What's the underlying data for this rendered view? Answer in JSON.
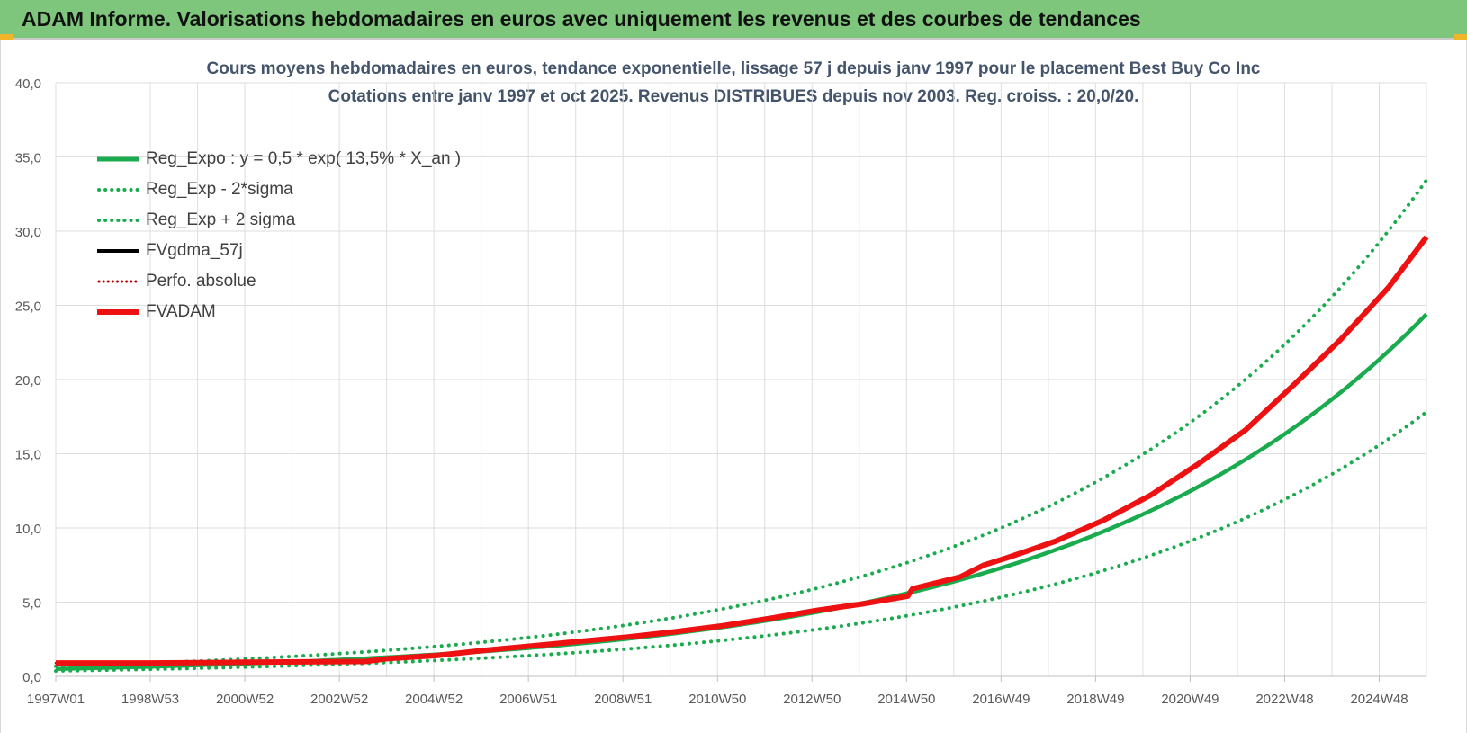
{
  "header": {
    "title": "ADAM Informe. Valorisations hebdomadaires en euros avec uniquement les revenus et des courbes de tendances"
  },
  "chart_data": {
    "type": "line",
    "title_line1": "Cours moyens hebdomadaires en euros, tendance exponentielle, lissage 57 j depuis janv 1997  pour le placement Best Buy Co Inc",
    "title_line2": "Cotations entre janv 1997 et oct 2025. Revenus DISTRIBUES depuis nov 2003. Reg. croiss. : 20,0/20.",
    "x_tick_labels": [
      "1997W01",
      "1998W53",
      "2000W52",
      "2002W52",
      "2004W52",
      "2006W51",
      "2008W51",
      "2010W50",
      "2012W50",
      "2014W50",
      "2016W49",
      "2018W49",
      "2020W49",
      "2022W48",
      "2024W48"
    ],
    "x_range_years": [
      1997.0,
      2025.8
    ],
    "ylim": [
      0,
      40
    ],
    "y_ticks": [
      0,
      5,
      10,
      15,
      20,
      25,
      30,
      35,
      40
    ],
    "y_tick_labels": [
      "0,0",
      "5,0",
      "10,0",
      "15,0",
      "20,0",
      "25,0",
      "30,0",
      "35,0",
      "40,0"
    ],
    "grid": true,
    "legend_position": "top-left",
    "regression": {
      "a": 0.5,
      "rate": 0.135,
      "x0": 1997.0,
      "lower_factor": 0.73,
      "upper_factor": 1.37
    },
    "series": [
      {
        "name": "Reg_Expo : y = 0,5 * exp( 13,5% *  X_an )",
        "color": "#1aab4f",
        "style": "solid",
        "kind": "reg"
      },
      {
        "name": "Reg_Exp - 2*sigma",
        "color": "#1aab4f",
        "style": "dotted",
        "kind": "reg_low"
      },
      {
        "name": "Reg_Exp + 2 sigma",
        "color": "#1aab4f",
        "style": "dotted",
        "kind": "reg_high"
      },
      {
        "name": "FVgdma_57j",
        "color": "#000000",
        "style": "solid",
        "kind": "data",
        "x": [
          1997.0,
          1999.0,
          2001.0,
          2003.5,
          2004.0,
          2005.0,
          2006.0,
          2007.0,
          2008.0,
          2009.0,
          2010.0,
          2011.0,
          2012.0,
          2013.0,
          2014.0,
          2014.9,
          2015.0,
          2016.0,
          2016.5,
          2017.0,
          2018.0,
          2019.0,
          2020.0,
          2021.0,
          2022.0,
          2023.0,
          2024.0,
          2025.0,
          2025.8
        ],
        "values": [
          0.9,
          0.9,
          0.95,
          1.0,
          1.2,
          1.4,
          1.75,
          2.05,
          2.35,
          2.65,
          3.0,
          3.4,
          3.9,
          4.45,
          4.9,
          5.4,
          5.9,
          6.7,
          7.5,
          8.0,
          9.1,
          10.5,
          12.2,
          14.3,
          16.6,
          19.6,
          22.7,
          26.2,
          29.6
        ]
      },
      {
        "name": "Perfo. absolue",
        "color": "#c00000",
        "style": "dotted",
        "kind": "data",
        "x": [
          1997.0,
          1999.0,
          2001.0,
          2003.5,
          2004.0,
          2005.0,
          2006.0,
          2007.0,
          2008.0,
          2009.0,
          2010.0,
          2011.0,
          2012.0,
          2013.0,
          2014.0,
          2014.9,
          2015.0,
          2016.0,
          2016.5,
          2017.0,
          2018.0,
          2019.0,
          2020.0,
          2021.0,
          2022.0,
          2023.0,
          2024.0,
          2025.0,
          2025.8
        ],
        "values": [
          0.9,
          0.9,
          0.95,
          1.0,
          1.2,
          1.4,
          1.75,
          2.05,
          2.35,
          2.65,
          3.0,
          3.4,
          3.9,
          4.45,
          4.9,
          5.4,
          5.9,
          6.7,
          7.5,
          8.0,
          9.1,
          10.5,
          12.2,
          14.3,
          16.6,
          19.6,
          22.7,
          26.2,
          29.6
        ]
      },
      {
        "name": "FVADAM",
        "color": "#ee1111",
        "style": "solid",
        "kind": "data",
        "x": [
          1997.0,
          1999.0,
          2001.0,
          2003.5,
          2004.0,
          2005.0,
          2006.0,
          2007.0,
          2008.0,
          2009.0,
          2010.0,
          2011.0,
          2012.0,
          2013.0,
          2014.0,
          2014.9,
          2015.0,
          2016.0,
          2016.5,
          2017.0,
          2018.0,
          2019.0,
          2020.0,
          2021.0,
          2022.0,
          2023.0,
          2024.0,
          2025.0,
          2025.8
        ],
        "values": [
          0.9,
          0.9,
          0.95,
          1.0,
          1.2,
          1.4,
          1.75,
          2.05,
          2.35,
          2.65,
          3.0,
          3.4,
          3.9,
          4.45,
          4.9,
          5.4,
          5.9,
          6.7,
          7.5,
          8.0,
          9.1,
          10.5,
          12.2,
          14.3,
          16.6,
          19.6,
          22.7,
          26.2,
          29.6
        ]
      }
    ]
  }
}
